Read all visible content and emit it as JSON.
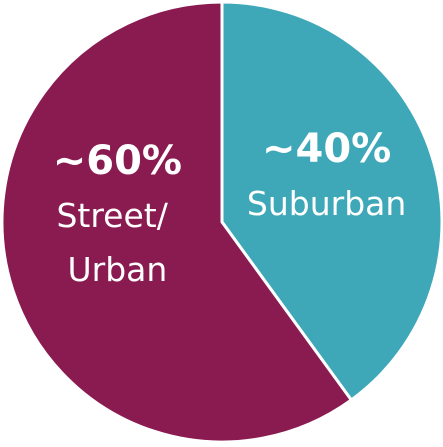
{
  "chart_data": {
    "type": "pie",
    "categories": [
      "Suburban",
      "Street/ Urban"
    ],
    "values": [
      40,
      60
    ],
    "value_labels": [
      "~40%",
      "~60%"
    ],
    "colors": [
      "#3fa8b8",
      "#8a1b51"
    ],
    "start_angle": 90,
    "direction": "clockwise"
  }
}
